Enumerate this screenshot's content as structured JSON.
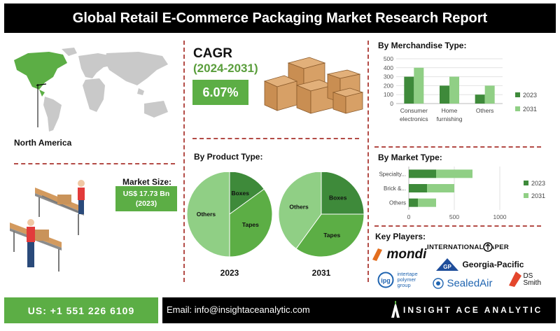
{
  "title": "Global Retail E-Commerce Packaging Market Research Report",
  "region": "North America",
  "cagr": {
    "label": "CAGR",
    "period": "(2024-2031)",
    "value": "6.07%"
  },
  "market_size": {
    "label": "Market Size:",
    "value": "US$ 17.73 Bn",
    "year": "(2023)"
  },
  "colors": {
    "green": "#5cae45",
    "dark_green": "#3e8a3a",
    "light_green": "#90cf85",
    "separator": "#b34b46"
  },
  "headings": {
    "product": "By Product Type:",
    "merchandise": "By Merchandise Type:",
    "market": "By Market Type:",
    "players": "Key Players:"
  },
  "chart_data": [
    {
      "id": "merchandise",
      "type": "bar",
      "categories": [
        "Consumer electronics",
        "Home furnishing",
        "Others"
      ],
      "series": [
        {
          "name": "2023",
          "values": [
            300,
            200,
            100
          ]
        },
        {
          "name": "2031",
          "values": [
            400,
            300,
            200
          ]
        }
      ],
      "ylim": [
        0,
        500
      ],
      "yticks": [
        0,
        100,
        200,
        300,
        400,
        500
      ],
      "legend": "right"
    },
    {
      "id": "market",
      "type": "bar",
      "orientation": "horizontal-stacked",
      "categories": [
        "Specialty...",
        "Brick &...",
        "Others"
      ],
      "series": [
        {
          "name": "2023",
          "values": [
            300,
            200,
            100
          ]
        },
        {
          "name": "2031",
          "values": [
            400,
            300,
            200
          ]
        }
      ],
      "xlim": [
        0,
        1000
      ],
      "xticks": [
        0,
        500,
        1000
      ],
      "legend": "right"
    },
    {
      "id": "product-2023",
      "type": "pie",
      "label": "2023",
      "slices": [
        {
          "name": "Boxes",
          "value": 15
        },
        {
          "name": "Tapes",
          "value": 35
        },
        {
          "name": "Others",
          "value": 50
        }
      ]
    },
    {
      "id": "product-2031",
      "type": "pie",
      "label": "2031",
      "slices": [
        {
          "name": "Boxes",
          "value": 25
        },
        {
          "name": "Tapes",
          "value": 35
        },
        {
          "name": "Others",
          "value": 40
        }
      ]
    }
  ],
  "players": {
    "mondi": "mondi",
    "international_paper": "INTERNATIONAL PAPER",
    "georgia_pacific": "Georgia-Pacific",
    "gp": "GP",
    "ipg": "ipg",
    "ipg_text_1": "intertape",
    "ipg_text_2": "polymer",
    "ipg_text_3": "group",
    "sealed_air": "SealedAir",
    "ds_smith_1": "DS",
    "ds_smith_2": "Smith"
  },
  "footer": {
    "phone": "US: +1 551 226 6109",
    "email": "Email: info@insightaceanalytic.com",
    "brand": "INSIGHT ACE ANALYTIC"
  }
}
